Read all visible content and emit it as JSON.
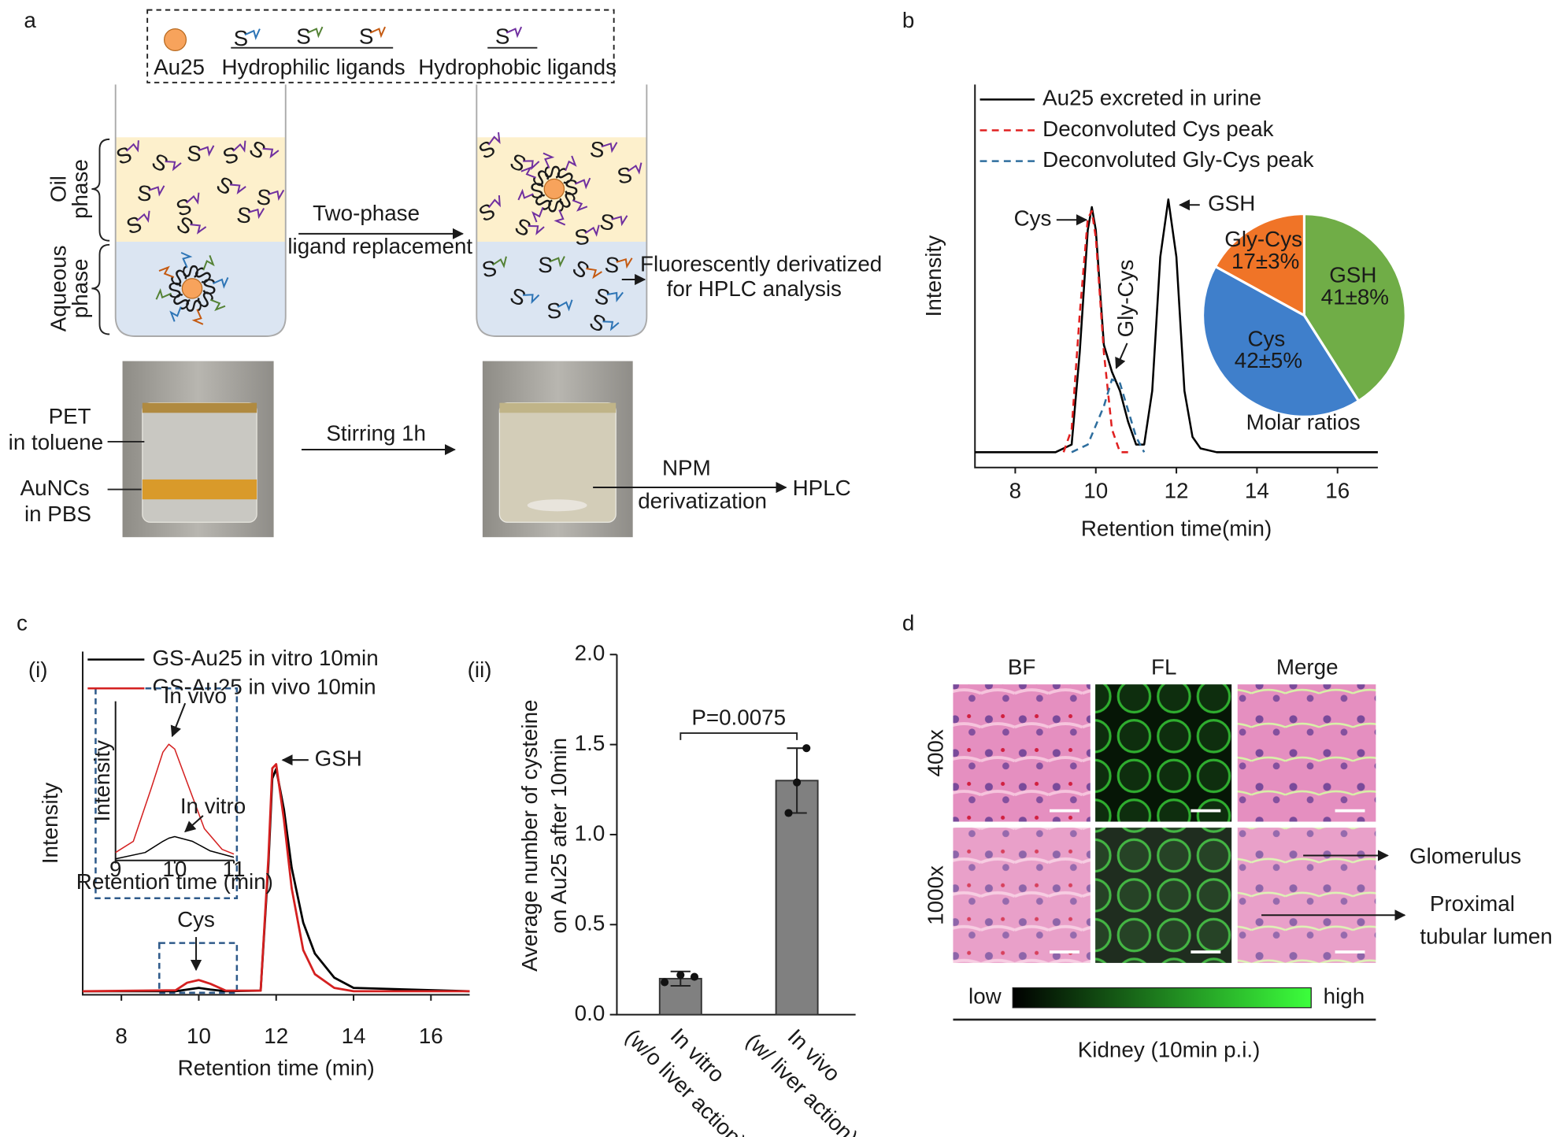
{
  "panel_labels": {
    "a": "a",
    "b": "b",
    "c": "c",
    "d": "d",
    "ci": "(i)",
    "cii": "(ii)"
  },
  "diagram_a": {
    "au25": "Au25",
    "hydrophilic": "Hydrophilic ligands",
    "hydrophobic": "Hydrophobic ligands",
    "ligand_symbol": "S",
    "oil_phase": [
      "Oil",
      "phase"
    ],
    "aqueous_phase": [
      "Aqueous",
      "phase"
    ],
    "replacement": [
      "Two-phase",
      "ligand replacement"
    ],
    "derivatized": [
      "Fluorescently derivatized",
      "for HPLC analysis"
    ],
    "pet": [
      "PET",
      "in toluene"
    ],
    "aunc": [
      "AuNCs",
      "in PBS"
    ],
    "stirring": "Stirring 1h",
    "npm": [
      "NPM",
      "derivatization"
    ],
    "hplc": "HPLC"
  },
  "chart_data": [
    {
      "type": "line",
      "xlabel": "Retention time(min)",
      "ylabel": "Intensity",
      "xlim": [
        7,
        17
      ],
      "xticks": [
        8,
        10,
        12,
        14,
        16
      ],
      "ylim": [
        0,
        1
      ],
      "annotations": [
        "Cys",
        "Gly-Cys",
        "GSH"
      ],
      "series": [
        {
          "name": "Au25 excreted in urine",
          "color": "#000000",
          "style": "solid",
          "x": [
            7,
            9,
            9.4,
            9.6,
            9.8,
            9.9,
            10.0,
            10.2,
            10.4,
            10.6,
            10.8,
            11.0,
            11.2,
            11.4,
            11.6,
            11.8,
            12.0,
            12.2,
            12.4,
            12.6,
            13,
            14,
            17
          ],
          "values": [
            0.04,
            0.04,
            0.06,
            0.3,
            0.62,
            0.68,
            0.62,
            0.32,
            0.25,
            0.2,
            0.12,
            0.06,
            0.06,
            0.2,
            0.55,
            0.7,
            0.55,
            0.2,
            0.08,
            0.05,
            0.04,
            0.04,
            0.04
          ]
        },
        {
          "name": "Deconvoluted Cys peak",
          "color": "#e02020",
          "style": "dashed",
          "x": [
            9.2,
            9.4,
            9.6,
            9.8,
            9.9,
            10.0,
            10.2,
            10.4,
            10.6,
            10.8
          ],
          "values": [
            0.04,
            0.1,
            0.4,
            0.65,
            0.67,
            0.6,
            0.3,
            0.1,
            0.04,
            0.04
          ]
        },
        {
          "name": "Deconvoluted Gly-Cys peak",
          "color": "#2e6e9e",
          "style": "dashed",
          "x": [
            9.4,
            9.8,
            10.2,
            10.4,
            10.6,
            10.8,
            11.0,
            11.2
          ],
          "values": [
            0.04,
            0.06,
            0.16,
            0.23,
            0.22,
            0.15,
            0.08,
            0.04
          ]
        }
      ]
    },
    {
      "type": "pie",
      "title": "Molar ratios",
      "categories": [
        "GSH",
        "Cys",
        "Gly-Cys"
      ],
      "values": [
        41,
        42,
        17
      ],
      "value_labels": [
        "41±8%",
        "42±5%",
        "17±3%"
      ],
      "colors": [
        "#70ad47",
        "#3f7fcb",
        "#f07427"
      ]
    },
    {
      "type": "line",
      "xlabel": "Retention time (min)",
      "ylabel": "Intensity",
      "xlim": [
        7,
        17
      ],
      "xticks": [
        8,
        10,
        12,
        14,
        16
      ],
      "ylim": [
        0,
        1
      ],
      "annotations": [
        "GSH",
        "Cys"
      ],
      "x": [
        7,
        9.4,
        9.7,
        10,
        10.3,
        10.7,
        11.6,
        11.8,
        11.9,
        12.0,
        12.2,
        12.4,
        12.7,
        13,
        13.5,
        14,
        17
      ],
      "series": [
        {
          "name": "GS-Au25 in vitro 10min",
          "color": "#000000",
          "style": "solid",
          "values": [
            0.01,
            0.01,
            0.015,
            0.02,
            0.015,
            0.01,
            0.012,
            0.38,
            0.63,
            0.658,
            0.54,
            0.37,
            0.21,
            0.12,
            0.05,
            0.02,
            0.01
          ]
        },
        {
          "name": "GS-Au25 in vivo 10min",
          "color": "#d42020",
          "style": "solid",
          "values": [
            0.01,
            0.013,
            0.035,
            0.043,
            0.032,
            0.012,
            0.012,
            0.4,
            0.66,
            0.672,
            0.51,
            0.31,
            0.13,
            0.06,
            0.02,
            0.01,
            0.01
          ]
        }
      ]
    },
    {
      "type": "line",
      "xlabel": "Retention time (min)",
      "ylabel": "Intensity",
      "xlim": [
        9,
        11
      ],
      "xticks": [
        9,
        10,
        11
      ],
      "ylim": [
        0,
        1
      ],
      "series": [
        {
          "name": "In vivo",
          "color": "#d42020",
          "style": "solid",
          "x": [
            9,
            9.3,
            9.6,
            9.8,
            9.9,
            10.0,
            10.2,
            10.5,
            10.8,
            11
          ],
          "values": [
            0.05,
            0.12,
            0.45,
            0.68,
            0.73,
            0.7,
            0.5,
            0.2,
            0.07,
            0.04
          ]
        },
        {
          "name": "In vitro",
          "color": "#000000",
          "style": "solid",
          "x": [
            9,
            9.5,
            9.8,
            9.9,
            10.0,
            10.3,
            10.6,
            11
          ],
          "values": [
            0.01,
            0.05,
            0.12,
            0.14,
            0.15,
            0.12,
            0.06,
            0.02
          ]
        }
      ]
    },
    {
      "type": "bar",
      "ylabel": [
        "Average number of cysteine",
        "on Au25 after 10min"
      ],
      "categories": [
        "In vitro",
        "In vivo"
      ],
      "category_notes": [
        "(w/o liver action)",
        "(w/ liver action)"
      ],
      "values": [
        0.2,
        1.3
      ],
      "errors": [
        0.04,
        0.18
      ],
      "points": [
        [
          0.18,
          0.22,
          0.21
        ],
        [
          1.48,
          1.29,
          1.12
        ]
      ],
      "color": "#808080",
      "annotation": "P=0.0075",
      "ylim": [
        0,
        2
      ],
      "yticks": [
        {
          "value": 0,
          "label": "0.0"
        },
        0.5,
        {
          "value": 1,
          "label": "1.0"
        },
        1.5,
        {
          "value": 2,
          "label": "2.0"
        }
      ]
    }
  ],
  "panel_d": {
    "columns": [
      "BF",
      "FL",
      "Merge"
    ],
    "rows": [
      "400x",
      "1000x"
    ],
    "glomerulus": "Glomerulus",
    "proximal": [
      "Proximal",
      "tubular lumen"
    ],
    "low": "low",
    "high": "high",
    "caption": "Kidney (10min p.i.)"
  }
}
